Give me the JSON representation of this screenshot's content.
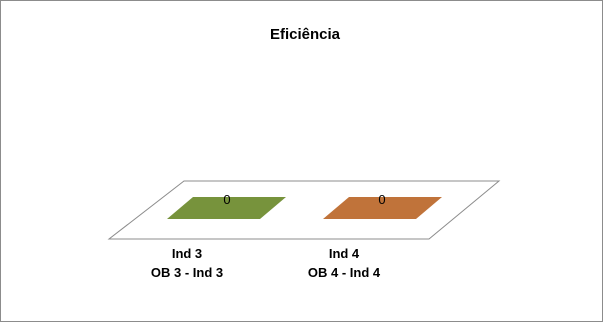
{
  "chart_data": {
    "type": "bar",
    "title": "Eficiência",
    "categories": [
      {
        "line1": "Ind  3",
        "line2": "OB 3 - Ind 3"
      },
      {
        "line1": "Ind 4",
        "line2": "OB 4 - Ind 4"
      }
    ],
    "values": [
      0,
      0
    ],
    "data_labels": [
      "0",
      "0"
    ],
    "colors": [
      "#77933c",
      "#c0733a"
    ],
    "grid": false,
    "legend": "none",
    "style": "3d"
  }
}
